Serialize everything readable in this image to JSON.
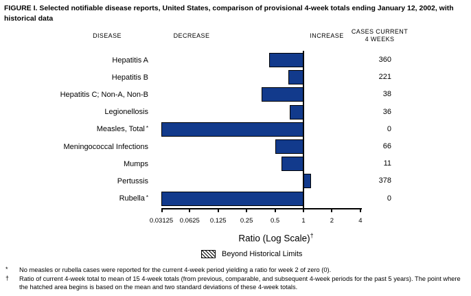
{
  "title": "FIGURE I. Selected notifiable disease reports, United States, comparison of provisional 4-week totals ending January 12, 2002, with historical data",
  "columns": {
    "disease": "DISEASE",
    "decrease": "DECREASE",
    "increase": "INCREASE",
    "cases_line1": "CASES CURRENT",
    "cases_line2": "4 WEEKS"
  },
  "chart_data": {
    "type": "bar",
    "orientation": "horizontal",
    "scale": "log",
    "x_ticks": [
      0.03125,
      0.0625,
      0.125,
      0.25,
      0.5,
      1,
      2,
      4
    ],
    "xlim": [
      0.03125,
      4
    ],
    "baseline_ratio": 1,
    "xlabel": "Ratio (Log Scale)",
    "xlabel_mark": "†",
    "bar_color": "#123a8c",
    "rows": [
      {
        "disease": "Hepatitis A",
        "mark": "",
        "ratio": 0.43,
        "cases_current_4_weeks": "360"
      },
      {
        "disease": "Hepatitis B",
        "mark": "",
        "ratio": 0.69,
        "cases_current_4_weeks": "221"
      },
      {
        "disease": "Hepatitis C; Non-A, Non-B",
        "mark": "",
        "ratio": 0.36,
        "cases_current_4_weeks": "38"
      },
      {
        "disease": "Legionellosis",
        "mark": "",
        "ratio": 0.72,
        "cases_current_4_weeks": "36"
      },
      {
        "disease": "Measles, Total",
        "mark": "*",
        "ratio": 0,
        "cases_current_4_weeks": "0"
      },
      {
        "disease": "Meningococcal Infections",
        "mark": "",
        "ratio": 0.5,
        "cases_current_4_weeks": "66"
      },
      {
        "disease": "Mumps",
        "mark": "",
        "ratio": 0.59,
        "cases_current_4_weeks": "11"
      },
      {
        "disease": "Pertussis",
        "mark": "",
        "ratio": 1.2,
        "cases_current_4_weeks": "378"
      },
      {
        "disease": "Rubella",
        "mark": "*",
        "ratio": 0,
        "cases_current_4_weeks": "0"
      }
    ],
    "legend": {
      "label": "Beyond Historical Limits",
      "swatch": "diagonal-hatch"
    }
  },
  "footnotes": [
    {
      "mark": "*",
      "text": "No measles or rubella cases were reported for the current 4-week period yielding a ratio for week 2 of zero (0)."
    },
    {
      "mark": "†",
      "text": "Ratio of current 4-week total to mean of 15 4-week totals (from previous, comparable, and subsequent 4-week periods for the past 5 years). The point where the hatched area begins is based on the mean and two standard deviations of these 4-week totals."
    }
  ]
}
